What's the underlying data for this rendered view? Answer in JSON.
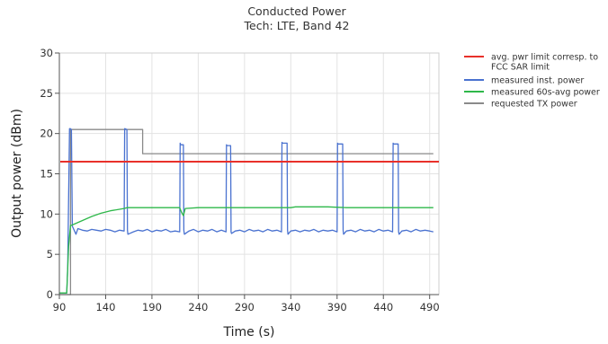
{
  "chart_data": {
    "type": "line",
    "title": "Conducted Power",
    "subtitle": "Tech: LTE, Band 42",
    "xlabel": "Time (s)",
    "ylabel": "Output power (dBm)",
    "xlim": [
      90,
      500
    ],
    "ylim": [
      0,
      30
    ],
    "xticks": [
      90,
      140,
      190,
      240,
      290,
      340,
      390,
      440,
      490
    ],
    "yticks": [
      0,
      5,
      10,
      15,
      20,
      25,
      30
    ],
    "grid": true,
    "legend_position": "right",
    "series": [
      {
        "name": "avg. pwr limit corresp. to FCC SAR limit",
        "color": "#e8302a",
        "x": [
          91,
          500
        ],
        "y": [
          16.5,
          16.5
        ]
      },
      {
        "name": "measured inst. power",
        "color": "#4a72d0",
        "x": [
          90,
          98,
          99,
          101,
          102,
          103,
          104,
          108,
          110,
          115,
          120,
          125,
          130,
          135,
          140,
          145,
          150,
          155,
          160,
          160.5,
          161,
          163,
          163.5,
          164,
          170,
          175,
          180,
          185,
          190,
          195,
          200,
          205,
          210,
          215,
          220,
          220.5,
          221,
          224,
          224.5,
          225,
          230,
          235,
          240,
          245,
          250,
          255,
          260,
          265,
          270,
          270.5,
          271,
          275,
          275.5,
          276,
          280,
          285,
          290,
          295,
          300,
          305,
          310,
          315,
          320,
          325,
          330,
          330.5,
          331,
          336,
          336.5,
          337,
          340,
          345,
          350,
          355,
          360,
          365,
          370,
          375,
          380,
          385,
          390,
          390.5,
          391,
          396,
          396.5,
          397,
          400,
          405,
          410,
          415,
          420,
          425,
          430,
          435,
          440,
          445,
          450,
          450.5,
          451,
          456,
          456.5,
          457,
          460,
          465,
          470,
          475,
          480,
          485,
          490,
          494
        ],
        "y": [
          0.2,
          0.2,
          3.5,
          20.6,
          20.6,
          20.5,
          8.5,
          7.5,
          8.2,
          8.0,
          7.9,
          8.1,
          8.0,
          7.9,
          8.1,
          8.0,
          7.8,
          8.0,
          7.9,
          20.6,
          20.6,
          20.5,
          8.0,
          7.5,
          7.8,
          8.0,
          7.9,
          8.1,
          7.8,
          8.0,
          7.9,
          8.1,
          7.8,
          7.9,
          7.8,
          18.8,
          18.6,
          18.6,
          8.0,
          7.5,
          7.9,
          8.1,
          7.8,
          8.0,
          7.9,
          8.1,
          7.8,
          8.0,
          7.8,
          18.6,
          18.5,
          18.5,
          7.8,
          7.6,
          7.9,
          8.0,
          7.8,
          8.1,
          7.9,
          8.0,
          7.8,
          8.1,
          7.9,
          8.0,
          7.8,
          18.9,
          18.8,
          18.8,
          8.0,
          7.5,
          7.9,
          8.0,
          7.8,
          8.0,
          7.9,
          8.1,
          7.8,
          8.0,
          7.9,
          8.0,
          7.8,
          18.8,
          18.7,
          18.7,
          8.0,
          7.5,
          7.9,
          8.0,
          7.8,
          8.1,
          7.9,
          8.0,
          7.8,
          8.1,
          7.9,
          8.0,
          7.8,
          18.8,
          18.7,
          18.7,
          7.8,
          7.5,
          7.9,
          8.0,
          7.8,
          8.1,
          7.9,
          8.0,
          7.9,
          7.8
        ]
      },
      {
        "name": "measured 60s-avg power",
        "color": "#2eb84a",
        "x": [
          90,
          98,
          100,
          102,
          103,
          105,
          115,
          125,
          135,
          145,
          155,
          160,
          163,
          170,
          190,
          210,
          220,
          222,
          224,
          226,
          240,
          260,
          280,
          300,
          320,
          340,
          345,
          360,
          380,
          400,
          420,
          440,
          460,
          470,
          490,
          494
        ],
        "y": [
          0.2,
          0.2,
          6.0,
          8.6,
          8.6,
          8.7,
          9.2,
          9.7,
          10.1,
          10.4,
          10.6,
          10.7,
          10.8,
          10.8,
          10.8,
          10.8,
          10.8,
          10.2,
          9.8,
          10.7,
          10.8,
          10.8,
          10.8,
          10.8,
          10.8,
          10.8,
          10.9,
          10.9,
          10.9,
          10.8,
          10.8,
          10.8,
          10.8,
          10.8,
          10.8,
          10.8
        ]
      },
      {
        "name": "requested TX power",
        "color": "#8a8a8a",
        "x": [
          90,
          102,
          102,
          180,
          180,
          494
        ],
        "y": [
          0.0,
          0.0,
          20.5,
          20.5,
          17.5,
          17.5
        ]
      }
    ]
  }
}
